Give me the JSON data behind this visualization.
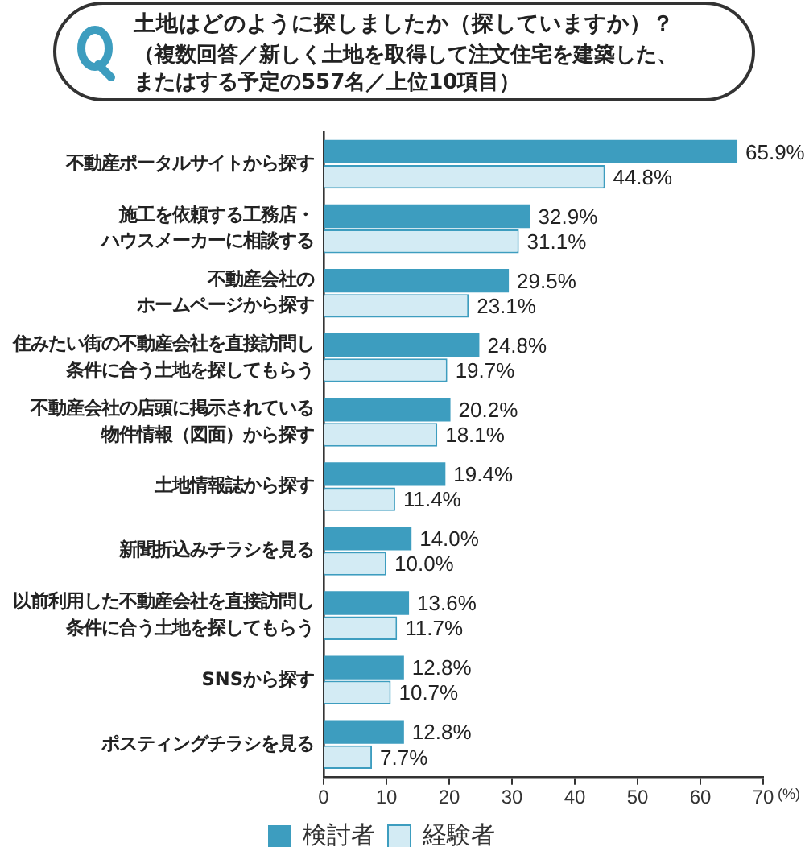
{
  "chart_data": {
    "type": "bar",
    "orientation": "horizontal",
    "title": "土地はどのように探しましたか（探していますか）？",
    "subtitle": "（複数回答／新しく土地を取得して注文住宅を建築した、またはする予定の557名／上位10項目）",
    "xlabel": "(%)",
    "categories": [
      "不動産ポータルサイトから探す",
      "施工を依頼する工務店・ハウスメーカーに相談する",
      "不動産会社のホームページから探す",
      "住みたい街の不動産会社を直接訪問し条件に合う土地を探してもらう",
      "不動産会社の店頭に掲示されている物件情報（図面）から探す",
      "土地情報誌から探す",
      "新聞折込みチラシを見る",
      "以前利用した不動産会社を直接訪問し条件に合う土地を探してもらう",
      "SNSから探す",
      "ポスティングチラシを見る"
    ],
    "series": [
      {
        "name": "検討者",
        "color": "#3d9dbf",
        "values": [
          65.9,
          32.9,
          29.5,
          24.8,
          20.2,
          19.4,
          14.0,
          13.6,
          12.8,
          12.8
        ],
        "value_labels": [
          "65.9%",
          "32.9%",
          "29.5%",
          "24.8%",
          "20.2%",
          "19.4%",
          "14.0%",
          "13.6%",
          "12.8%",
          "12.8%"
        ]
      },
      {
        "name": "経験者",
        "color": "#d3ebf4",
        "values": [
          44.8,
          31.1,
          23.1,
          19.7,
          18.1,
          11.4,
          10.0,
          11.7,
          10.7,
          7.7
        ],
        "value_labels": [
          "44.8%",
          "31.1%",
          "23.1%",
          "19.7%",
          "18.1%",
          "11.4%",
          "10.0%",
          "11.7%",
          "10.7%",
          "7.7%"
        ]
      }
    ],
    "xlim": [
      0,
      70
    ],
    "xticks": [
      0,
      10,
      20,
      30,
      40,
      50,
      60,
      70
    ],
    "grid": false,
    "legend": "bottom"
  }
}
